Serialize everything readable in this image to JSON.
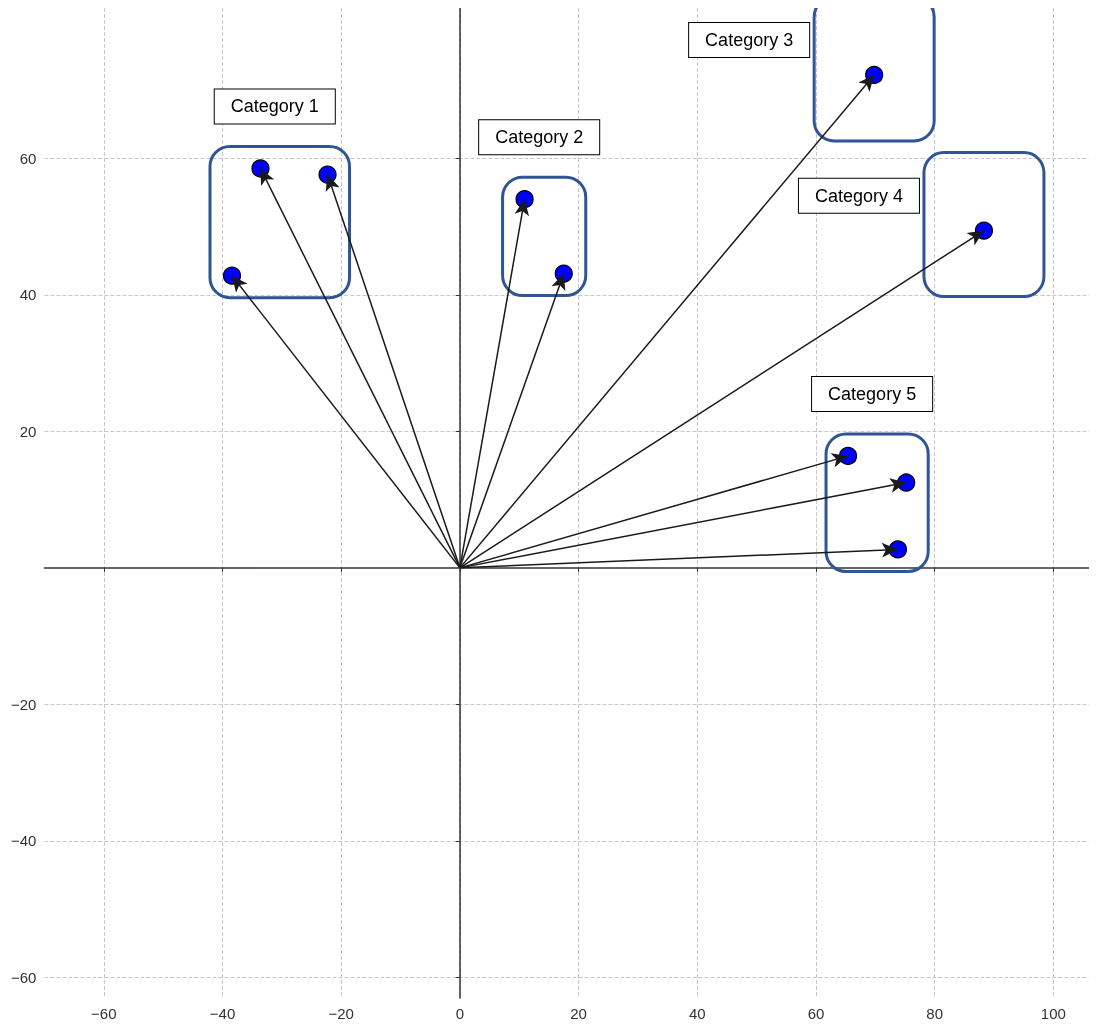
{
  "chart_data": {
    "type": "scatter",
    "marker": "circle",
    "grid": true,
    "xlim": [
      -70,
      106
    ],
    "ylim": [
      -63,
      82
    ],
    "xticks": [
      -60,
      -40,
      -20,
      0,
      20,
      40,
      60,
      80,
      100
    ],
    "yticks": [
      -60,
      -40,
      -20,
      20,
      40,
      60
    ],
    "series": [
      {
        "name": "Category 1",
        "color": "#0000ff",
        "x": [
          -38.4,
          -33.6,
          -22.3
        ],
        "values": [
          42.8,
          58.5,
          57.6
        ]
      },
      {
        "name": "Category 2",
        "color": "#0000ff",
        "x": [
          10.9,
          17.5
        ],
        "values": [
          54.0,
          43.1
        ]
      },
      {
        "name": "Category 3",
        "color": "#0000ff",
        "x": [
          69.8
        ],
        "values": [
          72.2
        ]
      },
      {
        "name": "Category 4",
        "color": "#0000ff",
        "x": [
          88.3
        ],
        "values": [
          49.4
        ]
      },
      {
        "name": "Category 5",
        "color": "#0000ff",
        "x": [
          65.4,
          75.2,
          73.8
        ],
        "values": [
          16.4,
          12.5,
          2.7
        ]
      }
    ]
  }
}
